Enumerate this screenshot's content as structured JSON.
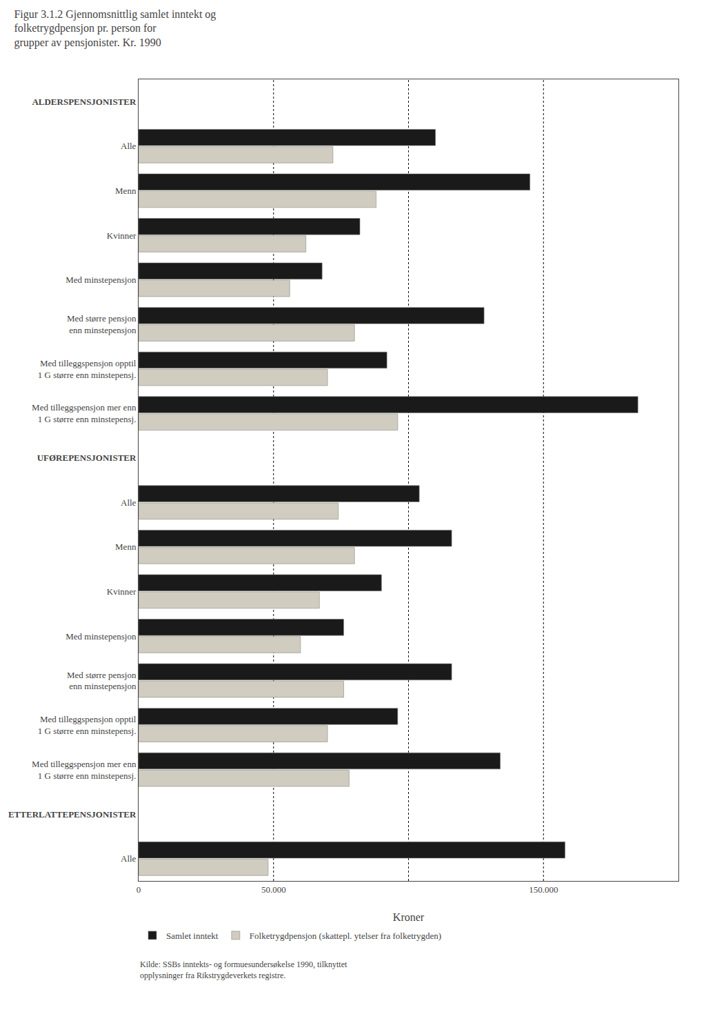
{
  "chart_data": {
    "type": "bar",
    "orientation": "horizontal",
    "title": "Figur 3.1.2 Gjennomsnittlig samlet inntekt og\nfolketrygdpensjon pr. person for\ngrupper av pensjonister. Kr. 1990",
    "xlabel": "Kroner",
    "categories": [
      "ALDERSPENSJONISTER",
      "Alle",
      "Menn",
      "Kvinner",
      "Med minstepensjon",
      "Med større pensjon\nenn minstepensjon",
      "Med tilleggspensjon opptil\n1 G større enn minstepensj.",
      "Med tilleggspensjon mer enn\n1 G større enn minstepensj.",
      "UFØREPENSJONISTER",
      "Alle",
      "Menn",
      "Kvinner",
      "Med minstepensjon",
      "Med større pensjon\nenn minstepensjon",
      "Med tilleggspensjon opptil\n1 G større enn minstepensj.",
      "Med tilleggspensjon mer enn\n1 G større enn minstepensj.",
      "ETTERLATTEPENSJONISTER",
      "Alle"
    ],
    "series": [
      {
        "name": "Samlet inntekt",
        "color": "#1a1a1a",
        "values": [
          null,
          110000,
          145000,
          82000,
          68000,
          128000,
          92000,
          185000,
          null,
          104000,
          116000,
          90000,
          76000,
          116000,
          96000,
          134000,
          null,
          158000
        ]
      },
      {
        "name": "Folketrygdpensjon (skattepl. ytelser fra folketrygden)",
        "color": "#d0ccc0",
        "values": [
          null,
          72000,
          88000,
          62000,
          56000,
          80000,
          70000,
          96000,
          null,
          74000,
          80000,
          67000,
          60000,
          76000,
          70000,
          78000,
          null,
          48000
        ]
      }
    ],
    "xlim": [
      0,
      200000
    ],
    "xticks": [
      0,
      {
        "value": 50000,
        "label": "50.000"
      },
      {
        "value": 150000,
        "label": "150.000"
      }
    ],
    "vlines": [
      50000,
      100000,
      150000
    ],
    "grid": false,
    "legend": "bottom",
    "annotations": [
      "Kilde: SSBs inntekts- og formuesundersøkelse 1990, tilknyttet\nopplysninger fra Rikstrygdeverkets registre."
    ]
  }
}
